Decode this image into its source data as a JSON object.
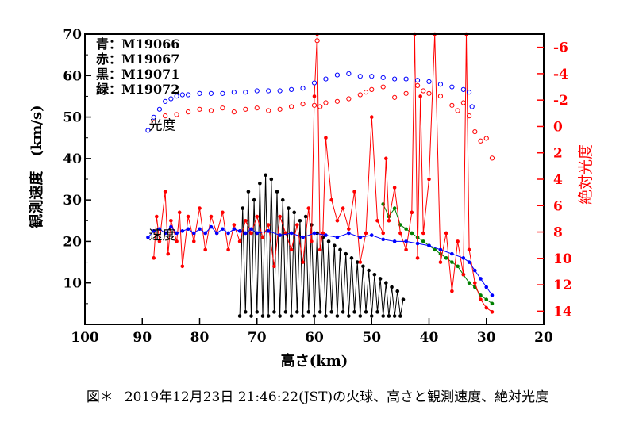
{
  "chart_data": {
    "type": "scatter",
    "title": "",
    "xlabel": "高さ(km)",
    "ylabel_left": "観測速度　(km/s)",
    "ylabel_right": "絶対光度",
    "xlim": [
      100,
      20
    ],
    "ylim_left": [
      0,
      70
    ],
    "ylim_right": [
      15,
      -7
    ],
    "x_ticks": [
      100,
      90,
      80,
      70,
      60,
      50,
      40,
      30,
      20
    ],
    "y_ticks_left": [
      10,
      20,
      30,
      40,
      50,
      60,
      70
    ],
    "y_ticks_right": [
      -6,
      -4,
      -2,
      0,
      2,
      4,
      6,
      8,
      10,
      12,
      14
    ],
    "legend": [
      {
        "label": "青：M19066",
        "color": "#0000ff"
      },
      {
        "label": "赤：M19067",
        "color": "#ff0000"
      },
      {
        "label": "黒：M19071",
        "color": "#000000"
      },
      {
        "label": "緑：M19072",
        "color": "#008000"
      }
    ],
    "annotations": [
      {
        "text": "光度",
        "x": 86.5,
        "y": 47
      },
      {
        "text": "速度",
        "x": 86.5,
        "y": 20.5
      }
    ],
    "series": [
      {
        "name": "M19066 光度",
        "color": "#0000ff",
        "axis": "right",
        "marker": "open-circle",
        "x": [
          89,
          88,
          87,
          86,
          85,
          84,
          83,
          82,
          80,
          78,
          76,
          74,
          72,
          70,
          68,
          66,
          64,
          62,
          60,
          58,
          56,
          54,
          52,
          50,
          48,
          46,
          44,
          42,
          40,
          38,
          36,
          34,
          33,
          32.5
        ],
        "y": [
          0.3,
          -0.7,
          -1.3,
          -1.9,
          -2.1,
          -2.3,
          -2.4,
          -2.4,
          -2.5,
          -2.5,
          -2.5,
          -2.6,
          -2.6,
          -2.7,
          -2.7,
          -2.7,
          -2.8,
          -2.9,
          -3.3,
          -3.6,
          -3.9,
          -4.0,
          -3.8,
          -3.8,
          -3.7,
          -3.6,
          -3.6,
          -3.5,
          -3.4,
          -3.2,
          -3.0,
          -2.8,
          -2.6,
          -1.5
        ]
      },
      {
        "name": "M19066 速度",
        "color": "#0000ff",
        "axis": "left",
        "marker": "filled-circle",
        "x": [
          89,
          88,
          87,
          86,
          85,
          84,
          83,
          82,
          81,
          80,
          79,
          78,
          77,
          76,
          75,
          74,
          73,
          72,
          71,
          70,
          68,
          66,
          64,
          62,
          60,
          58,
          56,
          54,
          52,
          50,
          48,
          46,
          44,
          42,
          40,
          38,
          36,
          34,
          33,
          32,
          31,
          30,
          29
        ],
        "y": [
          21,
          22.5,
          23,
          22,
          23.5,
          22,
          22.5,
          23,
          22,
          23,
          22,
          23.5,
          22,
          23,
          22,
          23,
          22.5,
          22,
          23,
          22,
          22.5,
          21.5,
          22,
          21,
          22,
          21.5,
          21,
          22,
          21,
          21.5,
          20.5,
          20,
          20,
          19.5,
          19,
          18,
          17,
          16,
          15,
          13,
          11,
          9,
          7
        ]
      },
      {
        "name": "M19067 光度",
        "color": "#ff0000",
        "axis": "right",
        "marker": "open-circle",
        "x": [
          88,
          86,
          84,
          82,
          80,
          78,
          76,
          74,
          72,
          70,
          68,
          66,
          64,
          62,
          60,
          59.5,
          59,
          58,
          56,
          54,
          52,
          51,
          50,
          48,
          46,
          44,
          42,
          41,
          40,
          38,
          36,
          35,
          34,
          33,
          32,
          31,
          30,
          29
        ],
        "y": [
          -0.3,
          -0.8,
          -0.9,
          -1.1,
          -1.3,
          -1.2,
          -1.4,
          -1.1,
          -1.3,
          -1.4,
          -1.2,
          -1.3,
          -1.5,
          -1.7,
          -1.6,
          -6.5,
          -1.5,
          -1.8,
          -1.9,
          -2.1,
          -2.4,
          -2.6,
          -2.8,
          -3.0,
          -2.2,
          -2.5,
          -3.1,
          -2.7,
          -2.5,
          -2.3,
          -1.6,
          -1.2,
          -1.8,
          -0.8,
          0.4,
          1.1,
          0.9,
          2.4
        ]
      },
      {
        "name": "M19067 速度",
        "color": "#ff0000",
        "axis": "left",
        "marker": "filled-circle",
        "x": [
          88,
          87.5,
          87,
          86,
          85.5,
          85,
          84,
          83.5,
          83,
          82,
          81,
          80,
          79,
          78,
          77,
          76,
          75,
          74,
          73,
          72,
          71,
          70,
          69,
          68,
          67,
          66,
          65,
          64,
          63,
          62,
          61,
          60.5,
          60,
          59.5,
          59,
          58.5,
          58,
          57,
          56,
          55,
          54,
          53,
          52,
          51,
          50,
          49,
          48,
          47.5,
          47,
          46,
          45,
          44,
          43,
          42.5,
          42,
          41.5,
          41,
          40,
          39,
          38,
          37,
          36,
          35,
          34,
          33.5,
          33,
          32,
          31,
          30,
          29
        ],
        "y": [
          16,
          26,
          20,
          32,
          17,
          25,
          20,
          27,
          14,
          26,
          20,
          28,
          18,
          26,
          22,
          27,
          18,
          24,
          20,
          25,
          22,
          26,
          21,
          24,
          14,
          26,
          22,
          18,
          24,
          15,
          28,
          20,
          55,
          70,
          18,
          22,
          45,
          30,
          25,
          28,
          23,
          32,
          15,
          22,
          50,
          25,
          22,
          40,
          25,
          33,
          22,
          18,
          27,
          70,
          16,
          55,
          22,
          35,
          70,
          15,
          22,
          8,
          20,
          12,
          70,
          18,
          10,
          6,
          4,
          3
        ]
      },
      {
        "name": "M19071 速度",
        "color": "#000000",
        "axis": "left",
        "marker": "filled-circle",
        "x": [
          73,
          72.5,
          72,
          71.5,
          71,
          70.5,
          70,
          69.5,
          69,
          68.5,
          68,
          67.5,
          67,
          66.5,
          66,
          65.5,
          65,
          64.5,
          64,
          63.5,
          63,
          62.5,
          62,
          61.5,
          61,
          60.5,
          60,
          59.5,
          59,
          58.5,
          58,
          57.5,
          57,
          56.5,
          56,
          55.5,
          55,
          54.5,
          54,
          53.5,
          53,
          52.5,
          52,
          51.5,
          51,
          50.5,
          50,
          49.5,
          49,
          48.5,
          48,
          47.5,
          47,
          46.5,
          46,
          45.5,
          45,
          44.5
        ],
        "y": [
          2,
          28,
          3,
          32,
          2,
          30,
          3,
          34,
          2,
          36,
          2,
          35,
          3,
          32,
          2,
          30,
          3,
          28,
          2,
          27,
          3,
          25,
          2,
          26,
          3,
          24,
          2,
          22,
          3,
          21,
          2,
          20,
          3,
          19,
          2,
          18,
          3,
          17,
          2,
          16,
          3,
          15,
          2,
          14,
          3,
          13,
          2,
          12,
          3,
          11,
          2,
          10,
          2,
          9,
          2,
          8,
          2,
          6
        ]
      },
      {
        "name": "M19072 速度",
        "color": "#008000",
        "axis": "left",
        "marker": "filled-circle",
        "x": [
          48,
          47,
          46,
          45,
          44,
          43,
          42,
          41,
          40,
          39,
          38,
          37,
          36,
          35,
          34,
          33,
          32,
          31,
          30,
          29
        ],
        "y": [
          29,
          26,
          28,
          24,
          23,
          22,
          21,
          20,
          19,
          18,
          17,
          16,
          15,
          14,
          12,
          10,
          9,
          7,
          6,
          5
        ]
      }
    ]
  },
  "caption": {
    "label": "図＊",
    "text": "2019年12月23日 21:46:22(JST)の火球、高さと観測速度、絶対光度"
  }
}
